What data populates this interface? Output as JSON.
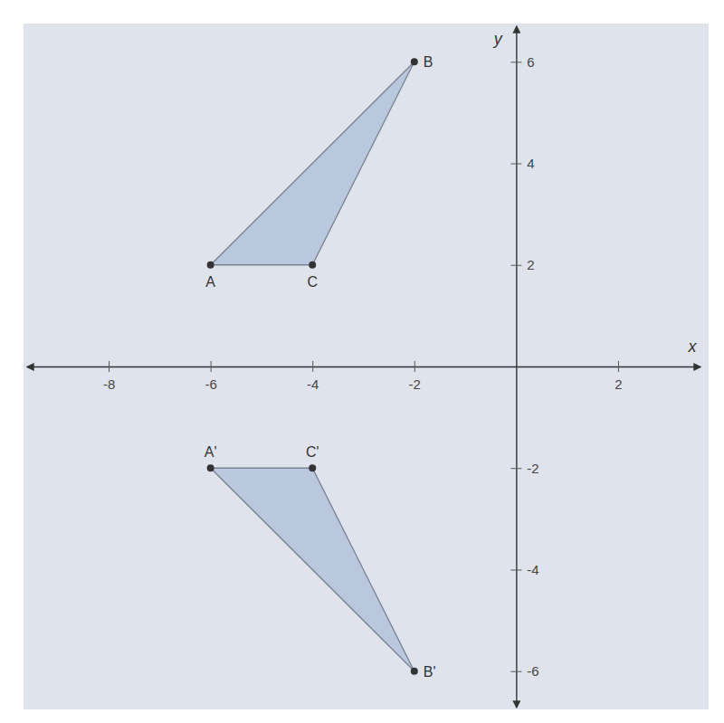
{
  "chart_data": {
    "type": "polygon",
    "xlabel": "x",
    "ylabel": "y",
    "xlim": [
      -9.6,
      3.6
    ],
    "ylim": [
      -6.7,
      6.7
    ],
    "xticks": [
      -8,
      -6,
      -4,
      -2,
      2
    ],
    "yticks": [
      -6,
      -4,
      -2,
      2,
      4,
      6
    ],
    "series": [
      {
        "labels": [
          "A",
          "B",
          "C"
        ],
        "x": [
          -6,
          -2,
          -4
        ],
        "y": [
          2,
          6,
          2
        ],
        "color": "#b9c8dd"
      },
      {
        "labels": [
          "A'",
          "B'",
          "C'"
        ],
        "x": [
          -6,
          -2,
          -4
        ],
        "y": [
          -2,
          -6,
          -2
        ],
        "color": "#b9c8dd"
      }
    ]
  }
}
